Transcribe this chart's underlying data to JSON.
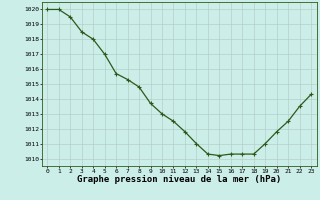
{
  "x": [
    0,
    1,
    2,
    3,
    4,
    5,
    6,
    7,
    8,
    9,
    10,
    11,
    12,
    13,
    14,
    15,
    16,
    17,
    18,
    19,
    20,
    21,
    22,
    23
  ],
  "y": [
    1020.0,
    1020.0,
    1019.5,
    1018.5,
    1018.0,
    1017.0,
    1015.7,
    1015.3,
    1014.8,
    1013.7,
    1013.0,
    1012.5,
    1011.8,
    1011.0,
    1010.3,
    1010.2,
    1010.3,
    1010.3,
    1010.3,
    1011.0,
    1011.8,
    1012.5,
    1013.5,
    1014.3
  ],
  "ylim": [
    1009.5,
    1020.5
  ],
  "yticks": [
    1010,
    1011,
    1012,
    1013,
    1014,
    1015,
    1016,
    1017,
    1018,
    1019,
    1020
  ],
  "xlim": [
    -0.5,
    23.5
  ],
  "xticks": [
    0,
    1,
    2,
    3,
    4,
    5,
    6,
    7,
    8,
    9,
    10,
    11,
    12,
    13,
    14,
    15,
    16,
    17,
    18,
    19,
    20,
    21,
    22,
    23
  ],
  "xlabel": "Graphe pression niveau de la mer (hPa)",
  "line_color": "#2d5a1b",
  "marker": "+",
  "marker_size": 3.5,
  "marker_color": "#2d5a1b",
  "bg_color": "#cceee8",
  "grid_color": "#b0c8c4",
  "tick_fontsize": 4.5,
  "xlabel_fontsize": 6.5,
  "linewidth": 0.9
}
